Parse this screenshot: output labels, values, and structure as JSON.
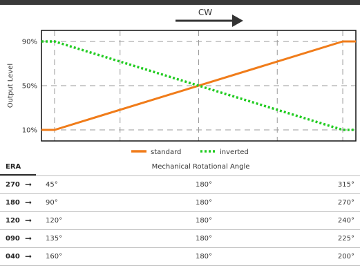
{
  "chart_data": {
    "type": "line",
    "ylabel": "Output Level",
    "yticks": [
      "90%",
      "50%",
      "10%"
    ],
    "ylim": [
      0,
      100
    ],
    "xlim": [
      0,
      360
    ],
    "grid": true,
    "direction_label": "CW",
    "legend_position": "bottom-center",
    "series": [
      {
        "name": "standard",
        "color": "#f07c1a",
        "style": "solid",
        "x": [
          0,
          15,
          345,
          360
        ],
        "y": [
          10,
          10,
          90,
          90
        ]
      },
      {
        "name": "inverted",
        "color": "#22cc22",
        "style": "dotted",
        "x": [
          0,
          15,
          345,
          360
        ],
        "y": [
          90,
          90,
          10,
          10
        ]
      }
    ]
  },
  "table": {
    "era_header": "ERA",
    "angle_header": "Mechanical Rotational Angle",
    "arrow_glyph": "➞",
    "rows": [
      {
        "era": "270",
        "start": "45°",
        "mid": "180°",
        "end": "315°"
      },
      {
        "era": "180",
        "start": "90°",
        "mid": "180°",
        "end": "270°"
      },
      {
        "era": "120",
        "start": "120°",
        "mid": "180°",
        "end": "240°"
      },
      {
        "era": "090",
        "start": "135°",
        "mid": "180°",
        "end": "225°"
      },
      {
        "era": "040",
        "start": "160°",
        "mid": "180°",
        "end": "200°"
      }
    ]
  }
}
